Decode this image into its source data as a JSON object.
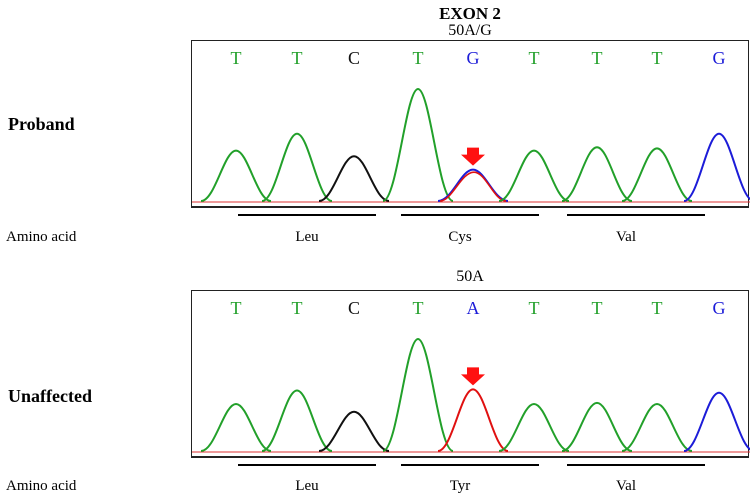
{
  "header": {
    "exon_title": "EXON 2"
  },
  "colors": {
    "T": "#22a02a",
    "C": "#111111",
    "G": "#1c1cd8",
    "A": "#1c1cd8",
    "A_trace": "#e01010",
    "arrow": "#ff1010"
  },
  "panels": [
    {
      "id": "proband",
      "variant_label": "50A/G",
      "sample_label": "Proband",
      "bases": [
        "T",
        "T",
        "C",
        "T",
        "G",
        "T",
        "T",
        "T",
        "G"
      ],
      "row_label": "Amino acid",
      "amino_acids": [
        "Leu",
        "Cys",
        "Val"
      ],
      "peaks": [
        {
          "base": "T",
          "height": 0.45
        },
        {
          "base": "T",
          "height": 0.6
        },
        {
          "base": "C",
          "height": 0.4
        },
        {
          "base": "T",
          "height": 1.0
        },
        {
          "base": "G",
          "height": 0.28,
          "mixed": true
        },
        {
          "base": "T",
          "height": 0.45
        },
        {
          "base": "T",
          "height": 0.48
        },
        {
          "base": "T",
          "height": 0.47
        },
        {
          "base": "G",
          "height": 0.6
        }
      ]
    },
    {
      "id": "unaffected",
      "variant_label": "50A",
      "sample_label": "Unaffected",
      "bases": [
        "T",
        "T",
        "C",
        "T",
        "A",
        "T",
        "T",
        "T",
        "G"
      ],
      "row_label": "Amino acid",
      "amino_acids": [
        "Leu",
        "Tyr",
        "Val"
      ],
      "peaks": [
        {
          "base": "T",
          "height": 0.42
        },
        {
          "base": "T",
          "height": 0.54
        },
        {
          "base": "C",
          "height": 0.35
        },
        {
          "base": "T",
          "height": 1.0
        },
        {
          "base": "A",
          "height": 0.55
        },
        {
          "base": "T",
          "height": 0.42
        },
        {
          "base": "T",
          "height": 0.43
        },
        {
          "base": "T",
          "height": 0.42
        },
        {
          "base": "G",
          "height": 0.52
        }
      ]
    }
  ]
}
